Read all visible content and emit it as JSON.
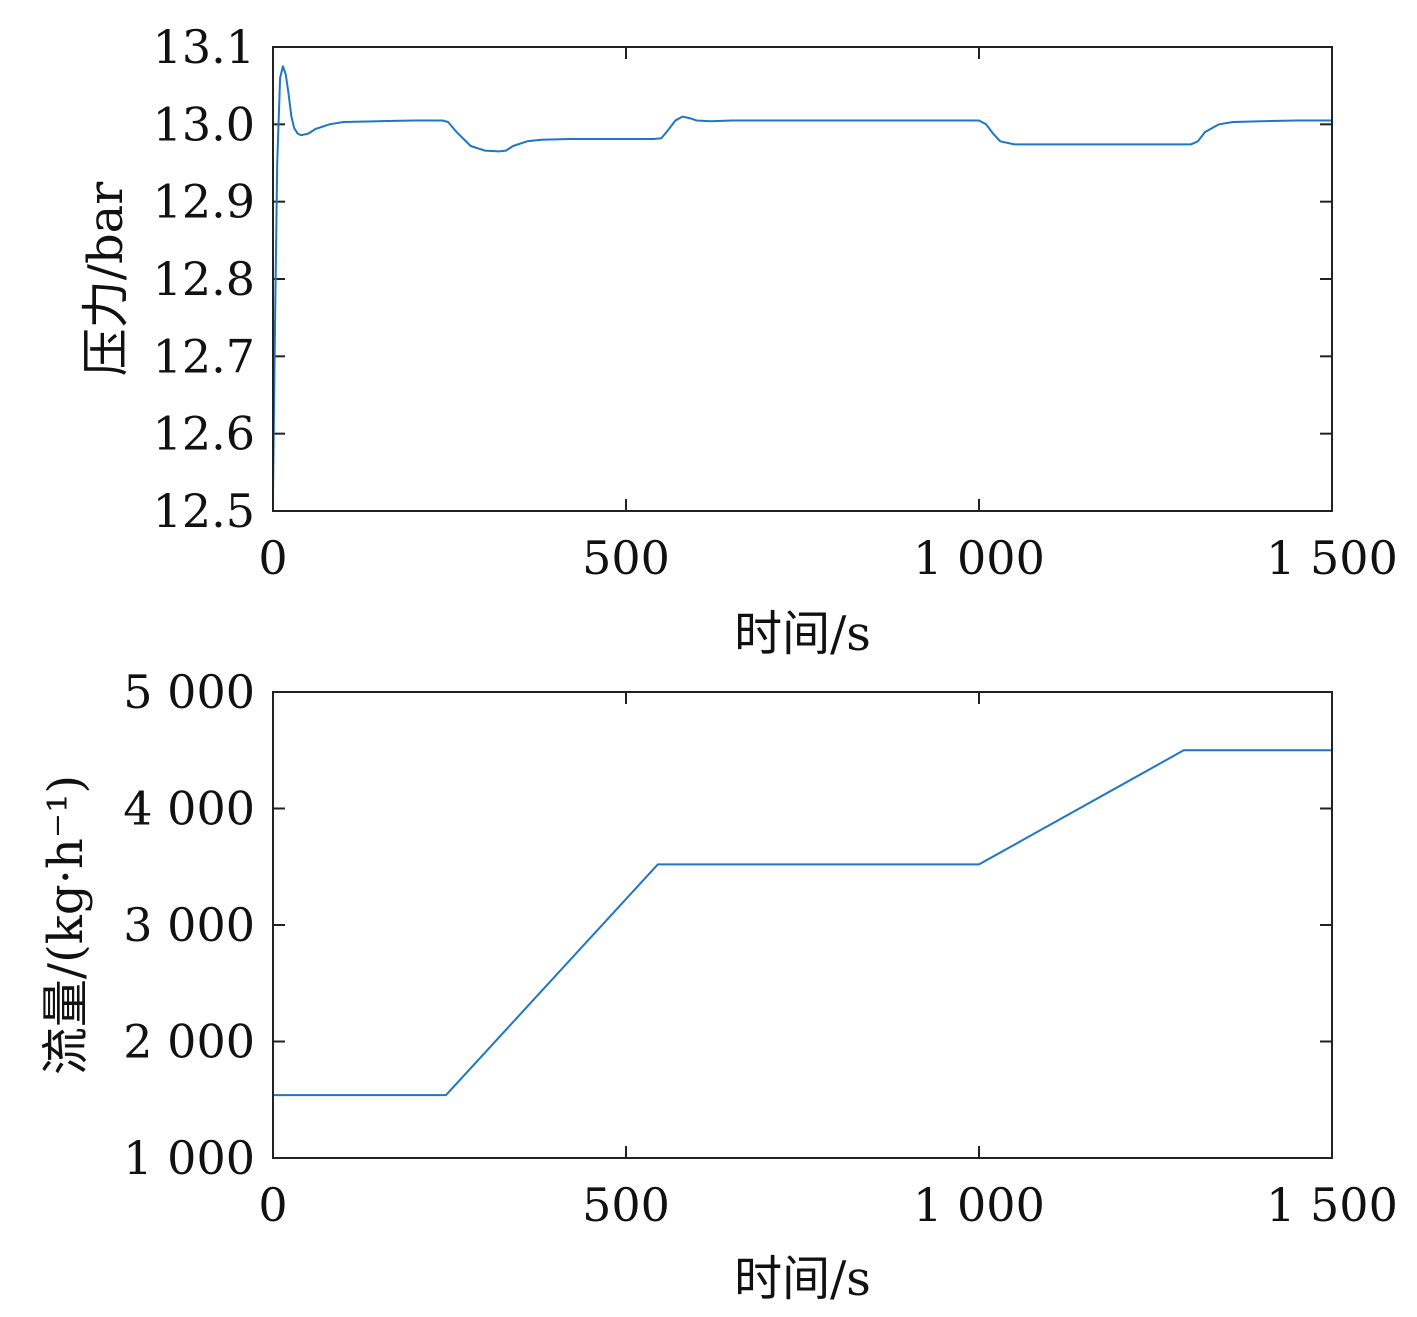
{
  "colors": {
    "series": "#1f77c4",
    "axes": "#222222",
    "background": "#ffffff"
  },
  "chart_data": [
    {
      "type": "line",
      "xlabel": "时间/s",
      "ylabel": "压力/bar",
      "xlim": [
        0,
        1500
      ],
      "ylim": [
        12.5,
        13.1
      ],
      "xticks": [
        0,
        500,
        1000,
        1500
      ],
      "xtick_labels": [
        "0",
        "500",
        "1 000",
        "1 500"
      ],
      "yticks": [
        12.5,
        12.6,
        12.7,
        12.8,
        12.9,
        13.0,
        13.1
      ],
      "ytick_labels": [
        "12.5",
        "12.6",
        "12.7",
        "12.8",
        "12.9",
        "13.0",
        "13.1"
      ],
      "grid": false,
      "series": [
        {
          "x": [
            0,
            3,
            6,
            10,
            14,
            18,
            22,
            26,
            30,
            35,
            40,
            50,
            60,
            80,
            100,
            150,
            200,
            240,
            248,
            260,
            280,
            300,
            320,
            330,
            340,
            360,
            380,
            420,
            480,
            540,
            550,
            560,
            570,
            580,
            590,
            600,
            620,
            650,
            700,
            800,
            900,
            1000,
            1010,
            1020,
            1030,
            1050,
            1100,
            1200,
            1300,
            1310,
            1320,
            1340,
            1360,
            1400,
            1450,
            1500
          ],
          "y": [
            12.52,
            12.75,
            12.95,
            13.06,
            13.075,
            13.065,
            13.04,
            13.01,
            12.995,
            12.988,
            12.986,
            12.988,
            12.994,
            13.0,
            13.003,
            13.004,
            13.005,
            13.005,
            13.003,
            12.99,
            12.972,
            12.966,
            12.965,
            12.966,
            12.972,
            12.978,
            12.98,
            12.981,
            12.981,
            12.981,
            12.982,
            12.993,
            13.005,
            13.01,
            13.008,
            13.005,
            13.004,
            13.005,
            13.005,
            13.005,
            13.005,
            13.005,
            13.0,
            12.988,
            12.978,
            12.974,
            12.974,
            12.974,
            12.974,
            12.978,
            12.99,
            13.0,
            13.003,
            13.004,
            13.005,
            13.005
          ]
        }
      ]
    },
    {
      "type": "line",
      "xlabel": "时间/s",
      "ylabel": "流量/(kg·h⁻¹)",
      "xlim": [
        0,
        1500
      ],
      "ylim": [
        1000,
        5000
      ],
      "xticks": [
        0,
        500,
        1000,
        1500
      ],
      "xtick_labels": [
        "0",
        "500",
        "1 000",
        "1 500"
      ],
      "yticks": [
        1000,
        2000,
        3000,
        4000,
        5000
      ],
      "ytick_labels": [
        "1 000",
        "2 000",
        "3 000",
        "4 000",
        "5 000"
      ],
      "grid": false,
      "series": [
        {
          "x": [
            0,
            245,
            545,
            1000,
            1290,
            1500
          ],
          "y": [
            1540,
            1540,
            3520,
            3520,
            4500,
            4500
          ]
        }
      ]
    }
  ]
}
